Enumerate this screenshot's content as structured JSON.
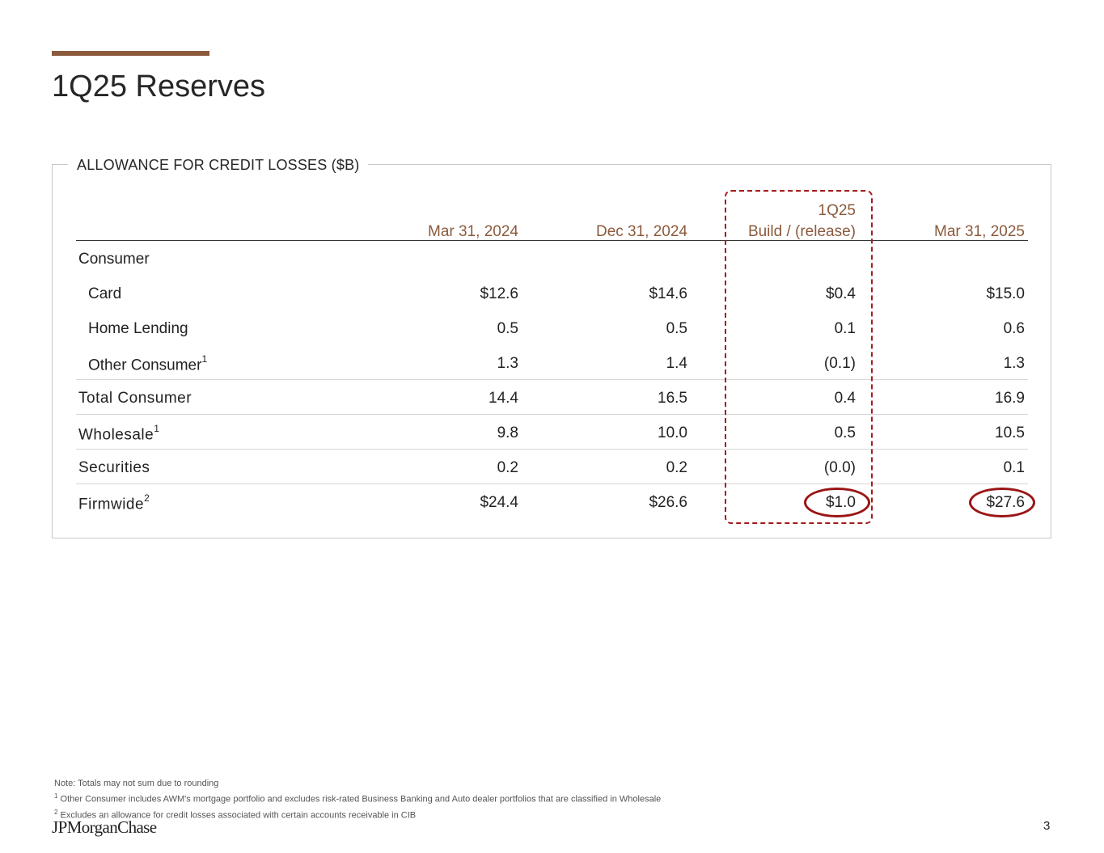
{
  "slide": {
    "title": "1Q25 Reserves",
    "page_number": "3",
    "logo": "JPMorganChase",
    "accent_color": "#8b5a3c",
    "highlight_color": "#a51c1c"
  },
  "panel": {
    "title": "ALLOWANCE FOR CREDIT LOSSES ($B)",
    "columns": [
      {
        "line1": "",
        "line2": "Mar 31, 2024"
      },
      {
        "line1": "",
        "line2": "Dec 31, 2024"
      },
      {
        "line1": "1Q25",
        "line2": "Build / (release)"
      },
      {
        "line1": "",
        "line2": "Mar 31, 2025"
      }
    ],
    "rows": [
      {
        "label": "Consumer",
        "sup": "",
        "values": [
          "",
          "",
          "",
          ""
        ]
      },
      {
        "label": "Card",
        "sup": "",
        "values": [
          "$12.6",
          "$14.6",
          "$0.4",
          "$15.0"
        ]
      },
      {
        "label": "Home Lending",
        "sup": "",
        "values": [
          "0.5",
          "0.5",
          "0.1",
          "0.6"
        ]
      },
      {
        "label": "Other Consumer",
        "sup": "1",
        "values": [
          "1.3",
          "1.4",
          "(0.1)",
          "1.3"
        ]
      },
      {
        "label": "Total Consumer",
        "sup": "",
        "values": [
          "14.4",
          "16.5",
          "0.4",
          "16.9"
        ]
      },
      {
        "label": "Wholesale",
        "sup": "1",
        "values": [
          "9.8",
          "10.0",
          "0.5",
          "10.5"
        ]
      },
      {
        "label": "Securities",
        "sup": "",
        "values": [
          "0.2",
          "0.2",
          "(0.0)",
          "0.1"
        ]
      },
      {
        "label": "Firmwide",
        "sup": "2",
        "values": [
          "$24.4",
          "$26.6",
          "$1.0",
          "$27.6"
        ]
      }
    ]
  },
  "footnotes": {
    "note": "Note: Totals may not sum due to rounding",
    "fn1_mark": "1",
    "fn1": "Other Consumer includes AWM's mortgage portfolio and excludes risk-rated Business Banking and Auto dealer portfolios that are classified in Wholesale",
    "fn2_mark": "2",
    "fn2": "Excludes an allowance for credit losses associated with certain accounts receivable in CIB"
  }
}
